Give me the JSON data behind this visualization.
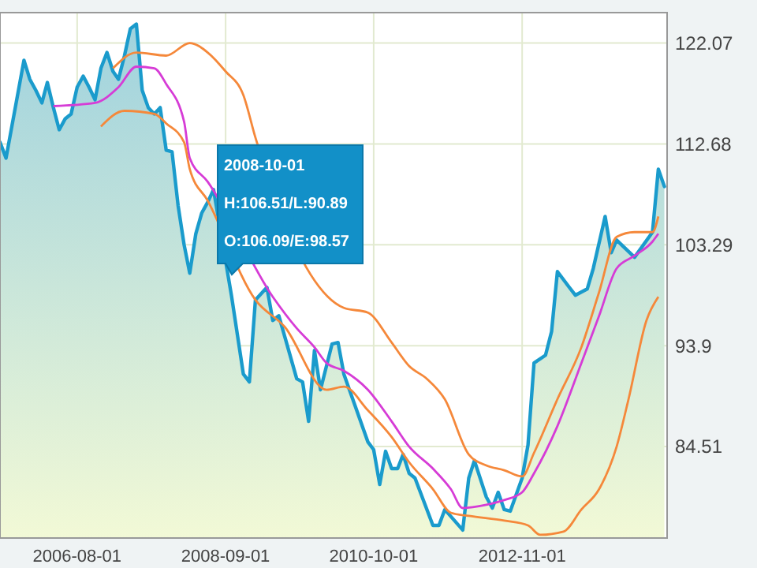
{
  "chart_data": {
    "type": "area",
    "xlim": [
      "2005-07-01",
      "2014-11-15"
    ],
    "xticks": [
      "2006-08-01",
      "2008-09-01",
      "2010-10-01",
      "2012-11-01"
    ],
    "ylim": [
      76,
      124.9
    ],
    "yticks": [
      84.51,
      93.9,
      103.29,
      112.68,
      122.07
    ],
    "grid": true,
    "tick_labels": true,
    "annotations": [
      "2008-10-01",
      "H:106.51/L:90.89",
      "O:106.09/E:98.57"
    ],
    "series": [
      {
        "color": "#1a9bcc",
        "x": [
          "2005-07",
          "2005-08",
          "2005-11",
          "2005-12",
          "2006-01",
          "2006-02",
          "2006-03",
          "2006-04",
          "2006-05",
          "2006-06",
          "2006-07",
          "2006-08",
          "2006-09",
          "2006-10",
          "2006-11",
          "2006-12",
          "2007-01",
          "2007-02",
          "2007-03",
          "2007-04",
          "2007-05",
          "2007-06",
          "2007-07",
          "2007-08",
          "2007-09",
          "2007-10",
          "2007-11",
          "2007-12",
          "2008-01",
          "2008-02",
          "2008-03",
          "2008-04",
          "2008-05",
          "2008-06",
          "2008-07",
          "2008-08",
          "2008-09",
          "2008-10",
          "2008-12",
          "2009-01",
          "2009-02",
          "2009-04",
          "2009-05",
          "2009-06",
          "2009-09",
          "2009-10",
          "2009-11",
          "2009-12",
          "2010-01",
          "2010-03",
          "2010-04",
          "2010-05",
          "2010-09",
          "2010-10",
          "2010-11",
          "2010-12",
          "2011-01",
          "2011-02",
          "2011-03",
          "2011-04",
          "2011-05",
          "2011-08",
          "2011-09",
          "2011-10",
          "2012-01",
          "2012-02",
          "2012-03",
          "2012-05",
          "2012-06",
          "2012-07",
          "2012-08",
          "2012-09",
          "2012-11",
          "2012-12",
          "2013-01",
          "2013-03",
          "2013-04",
          "2013-05",
          "2013-07",
          "2013-08",
          "2013-10",
          "2013-11",
          "2014-01",
          "2014-02",
          "2014-03",
          "2014-06",
          "2014-09",
          "2014-10",
          "2014-11"
        ],
        "values": [
          112.83,
          111.36,
          120.46,
          118.7,
          117.67,
          116.5,
          118.4,
          116.06,
          114.0,
          115.03,
          115.47,
          117.96,
          118.99,
          117.96,
          116.79,
          119.72,
          121.19,
          119.43,
          118.7,
          120.9,
          123.39,
          123.83,
          117.67,
          116.06,
          115.47,
          116.06,
          112.1,
          111.95,
          106.96,
          103.29,
          100.65,
          104.32,
          106.23,
          107.25,
          108.43,
          null,
          null,
          98.57,
          91.26,
          90.53,
          98.16,
          99.33,
          96.25,
          96.69,
          90.82,
          90.53,
          86.86,
          93.46,
          89.8,
          94.05,
          94.2,
          91.26,
          84.95,
          84.22,
          80.99,
          84.07,
          82.46,
          82.46,
          83.78,
          82.02,
          81.58,
          77.18,
          77.18,
          78.65,
          76.74,
          81.58,
          83.2,
          79.82,
          78.79,
          80.26,
          78.65,
          78.5,
          81.58,
          84.66,
          92.29,
          93.02,
          95.22,
          100.8,
          99.33,
          98.6,
          99.18,
          101.09,
          105.93,
          102.56,
          103.73,
          102.13,
          104.47,
          110.33,
          108.72
        ]
      },
      {
        "type": "line",
        "color": "#d63cd6",
        "x": [
          "2006-04",
          "2006-11",
          "2007-03",
          "2007-06",
          "2007-09",
          "2007-11",
          "2008-02",
          "2008-03",
          "2008-06",
          "2009-02",
          "2009-05",
          "2009-09",
          "2009-12",
          "2010-02",
          "2010-05",
          "2010-09",
          "2011-01",
          "2011-04",
          "2011-08",
          "2011-11",
          "2012-01",
          "2012-05",
          "2012-08",
          "2012-11",
          "2013-01",
          "2013-05",
          "2013-09",
          "2013-12",
          "2014-03",
          "2014-06",
          "2014-09",
          "2014-10"
        ],
        "values": [
          116.2,
          116.5,
          117.96,
          119.87,
          119.72,
          118.26,
          114.74,
          111.36,
          109.16,
          null,
          98.45,
          95.52,
          93.76,
          92.29,
          91.56,
          89.8,
          86.86,
          84.51,
          82.46,
          80.55,
          78.79,
          79.09,
          79.53,
          80.26,
          82.02,
          86.42,
          92.29,
          96.69,
          101.09,
          102.27,
          103.59,
          104.32
        ]
      },
      {
        "type": "line",
        "color": "#f5883a",
        "x": [
          "2007-02",
          "2007-06",
          "2007-11",
          "2008-03",
          "2008-06",
          "2008-09",
          "2008-12",
          "2009-02",
          "2009-05",
          "2009-09",
          "2009-12",
          "2010-03",
          "2010-05",
          "2010-09",
          "2011-01",
          "2011-04",
          "2011-07",
          "2011-10",
          "2012-02",
          "2012-05",
          "2012-08",
          "2012-11",
          "2013-01",
          "2013-05",
          "2013-09",
          "2013-12",
          "2014-03",
          "2014-06",
          "2014-09",
          "2014-10"
        ],
        "values": [
          119.72,
          121.19,
          120.9,
          122.07,
          121.19,
          119.43,
          117.23,
          113.27,
          null,
          null,
          null,
          null,
          97.42,
          96.98,
          94.2,
          92.0,
          90.82,
          88.92,
          83.78,
          82.75,
          82.31,
          81.73,
          83.93,
          88.92,
          93.76,
          98.89,
          104.03,
          104.47,
          104.47,
          105.93
        ]
      },
      {
        "type": "line",
        "color": "#f5883a",
        "x": [
          "2006-12",
          "2007-04",
          "2007-09",
          "2007-11",
          "2008-02",
          "2008-03",
          "2008-06",
          "2008-12",
          "2009-02",
          "2009-07",
          "2010-02",
          "2010-05",
          "2010-09",
          "2011-01",
          "2011-04",
          "2011-08",
          "2011-11",
          "2012-02",
          "2012-08",
          "2012-12",
          "2013-02",
          "2013-06",
          "2013-09",
          "2013-12",
          "2014-03",
          "2014-05",
          "2014-08",
          "2014-10"
        ],
        "values": [
          114.3,
          115.76,
          115.47,
          114.59,
          112.83,
          110.33,
          107.4,
          null,
          98.16,
          95.66,
          89.8,
          90.09,
          87.89,
          85.4,
          83.05,
          80.55,
          78.35,
          78.06,
          77.62,
          77.18,
          76.3,
          76.6,
          78.65,
          80.55,
          84.51,
          88.92,
          96.25,
          98.45
        ]
      }
    ]
  }
}
